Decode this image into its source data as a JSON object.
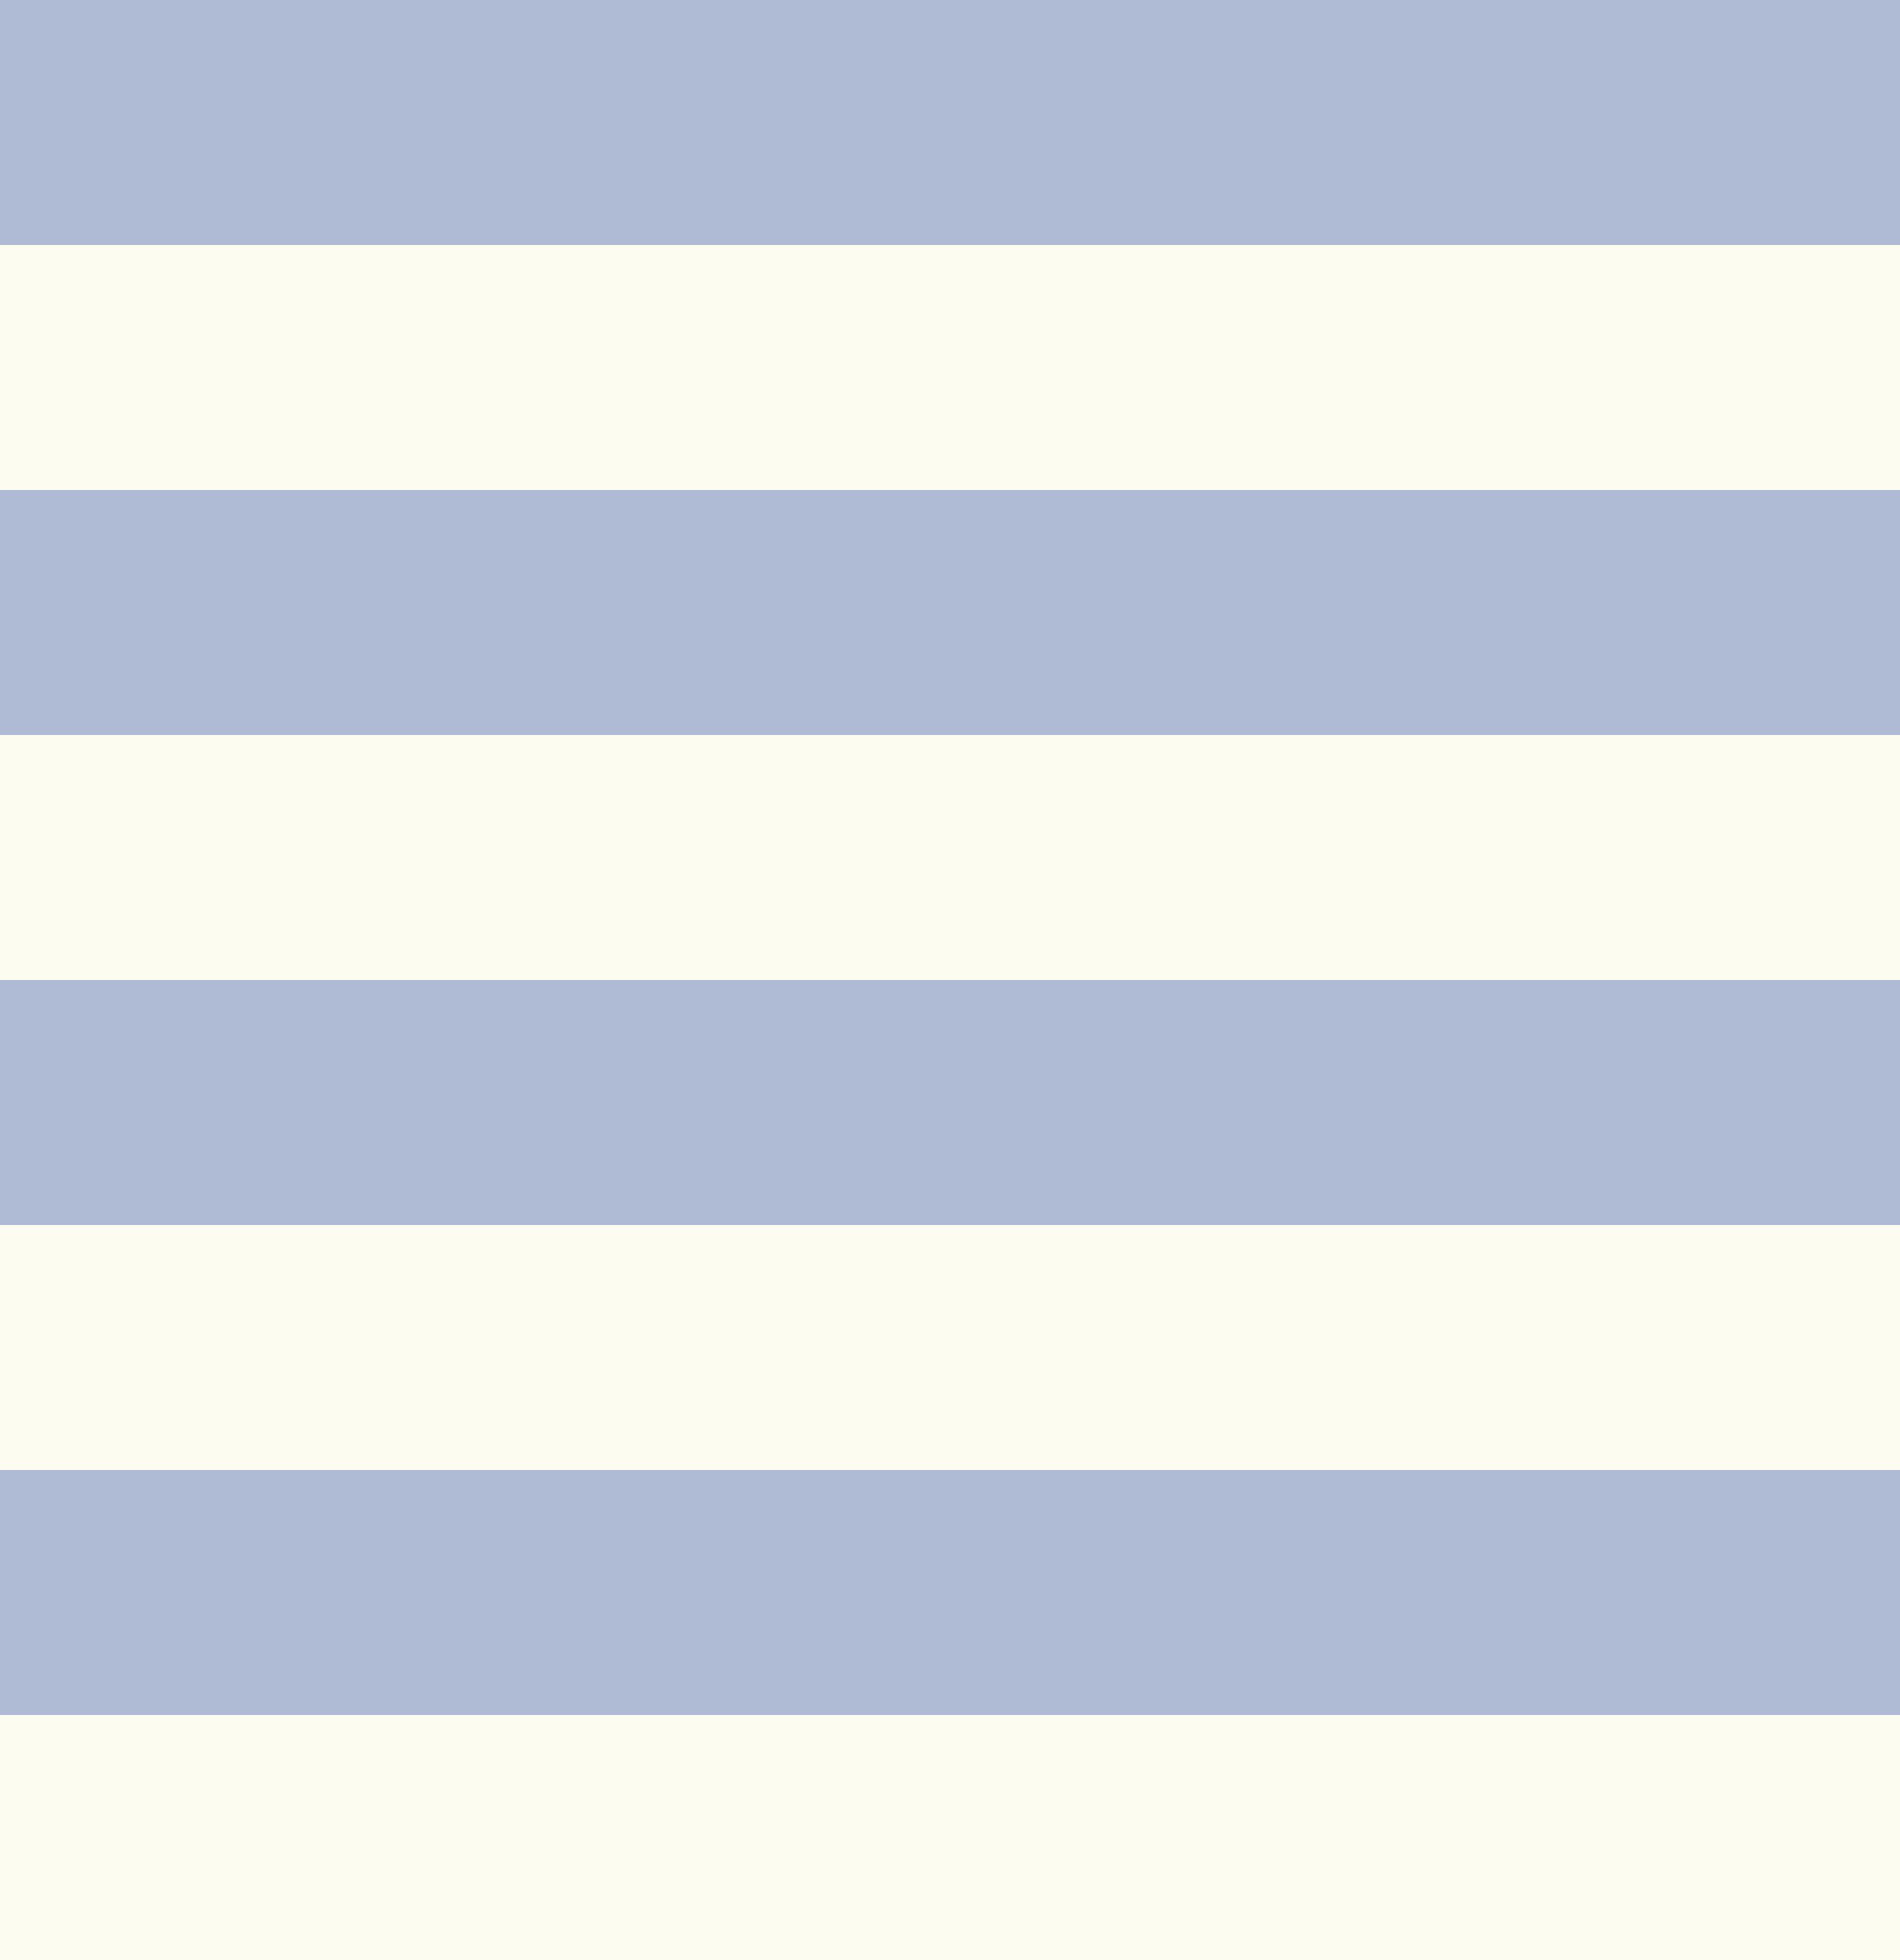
{
  "colors": {
    "blue": "#AFBBD4",
    "cream": "#FCFDF0"
  },
  "stripes": [
    "blue",
    "cream",
    "blue",
    "cream",
    "blue",
    "cream",
    "blue",
    "cream"
  ]
}
